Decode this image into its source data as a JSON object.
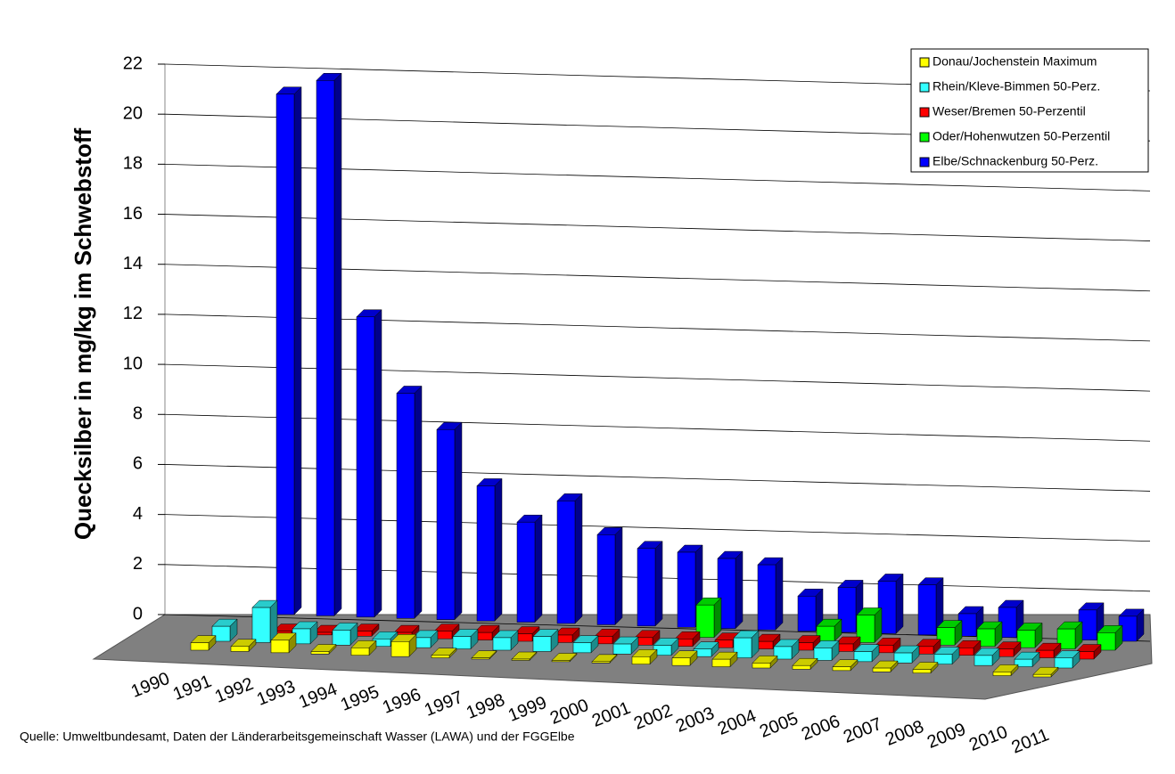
{
  "chart_data": {
    "type": "bar3d",
    "y_label": "Quecksilber in mg/kg im Schwebstoff",
    "source": "Quelle: Umweltbundesamt, Daten der Länderarbeitsgemeinschaft Wasser (LAWA) und der FGGElbe",
    "categories": [
      "1990",
      "1991",
      "1992",
      "1993",
      "1994",
      "1995",
      "1996",
      "1997",
      "1998",
      "1999",
      "2000",
      "2001",
      "2002",
      "2003",
      "2004",
      "2005",
      "2006",
      "2007",
      "2008",
      "2009",
      "2010",
      "2011"
    ],
    "series": [
      {
        "name": "Donau/Jochenstein Maximum",
        "color": "#ffff00",
        "values": [
          0.3,
          0.2,
          0.5,
          0.1,
          0.3,
          0.6,
          0.1,
          0.05,
          0.05,
          0.05,
          0.05,
          0.3,
          0.3,
          0.3,
          0.2,
          0.15,
          0.15,
          0.15,
          0.15,
          null,
          0.15,
          0.1
        ]
      },
      {
        "name": "Rhein/Kleve-Bimmen 50-Perz.",
        "color": "#33ffff",
        "values": [
          0.6,
          1.4,
          0.6,
          0.6,
          0.3,
          0.4,
          0.5,
          0.5,
          0.6,
          0.4,
          0.4,
          0.4,
          0.3,
          0.8,
          0.5,
          0.5,
          0.4,
          0.4,
          0.4,
          0.4,
          0.3,
          0.4
        ]
      },
      {
        "name": "Weser/Bremen 50-Perzentil",
        "color": "#ff0000",
        "values": [
          null,
          0.1,
          0.1,
          0.2,
          0.2,
          0.3,
          0.3,
          0.3,
          0.3,
          0.3,
          0.3,
          0.3,
          0.3,
          0.3,
          0.3,
          0.3,
          0.3,
          0.3,
          0.3,
          0.3,
          0.3,
          0.3
        ]
      },
      {
        "name": "Oder/Hohenwutzen 50-Perzentil",
        "color": "#00ff00",
        "values": [
          null,
          null,
          null,
          null,
          null,
          null,
          null,
          null,
          null,
          null,
          null,
          1.3,
          null,
          null,
          0.6,
          1.1,
          null,
          0.7,
          0.7,
          0.7,
          0.8,
          0.7
        ]
      },
      {
        "name": "Elbe/Schnackenburg 50-Perz.",
        "color": "#0000ff",
        "values": [
          20.8,
          21.4,
          12.0,
          9.0,
          7.6,
          5.4,
          4.0,
          4.9,
          3.6,
          3.1,
          3.0,
          2.8,
          2.6,
          1.4,
          1.8,
          2.1,
          2.0,
          0.9,
          1.2,
          null,
          1.2,
          1.0
        ]
      }
    ],
    "ylim": [
      0,
      22
    ],
    "yticks": [
      0,
      2,
      4,
      6,
      8,
      10,
      12,
      14,
      16,
      18,
      20,
      22
    ],
    "grid": true,
    "legend": "top-right"
  }
}
